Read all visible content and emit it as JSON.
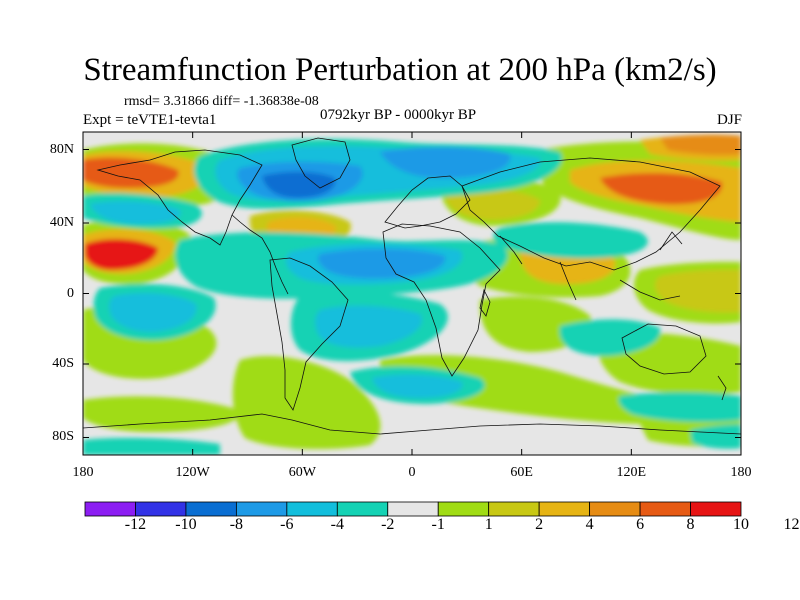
{
  "title": "Streamfunction Perturbation at 200 hPa (km2/s)",
  "stats": "rmsd= 3.31866 diff= -1.36838e-08",
  "experiment": "Expt = teVTE1-tevta1",
  "period": "0792kyr BP - 0000kyr BP",
  "season": "DJF",
  "y_ticks": [
    {
      "label": "80N"
    },
    {
      "label": "40N"
    },
    {
      "label": "0"
    },
    {
      "label": "40S"
    },
    {
      "label": "80S"
    }
  ],
  "x_ticks": [
    {
      "label": "180"
    },
    {
      "label": "120W"
    },
    {
      "label": "60W"
    },
    {
      "label": "0"
    },
    {
      "label": "60E"
    },
    {
      "label": "120E"
    },
    {
      "label": "180"
    }
  ],
  "colorbar": {
    "colors": [
      "#8c1ef2",
      "#3232e6",
      "#0a6ed2",
      "#1e9ae6",
      "#12bedc",
      "#14d2b4",
      "#e6e6e6",
      "#a0dc14",
      "#c8c814",
      "#e6b414",
      "#e68c14",
      "#e65a14",
      "#e61414"
    ],
    "labels": [
      "-12",
      "-10",
      "-8",
      "-6",
      "-4",
      "-2",
      "-1",
      "1",
      "2",
      "4",
      "6",
      "8",
      "10",
      "12"
    ]
  },
  "palette": {
    "grey": "#e6e6e6",
    "neg1": "#14d2b4",
    "neg2": "#12bedc",
    "neg3": "#1e9ae6",
    "neg4": "#0a6ed2",
    "pos1": "#a0dc14",
    "pos2": "#c8c814",
    "pos3": "#e6b414",
    "pos4": "#e68c14",
    "pos5": "#e65a14",
    "pos6": "#e61414"
  }
}
